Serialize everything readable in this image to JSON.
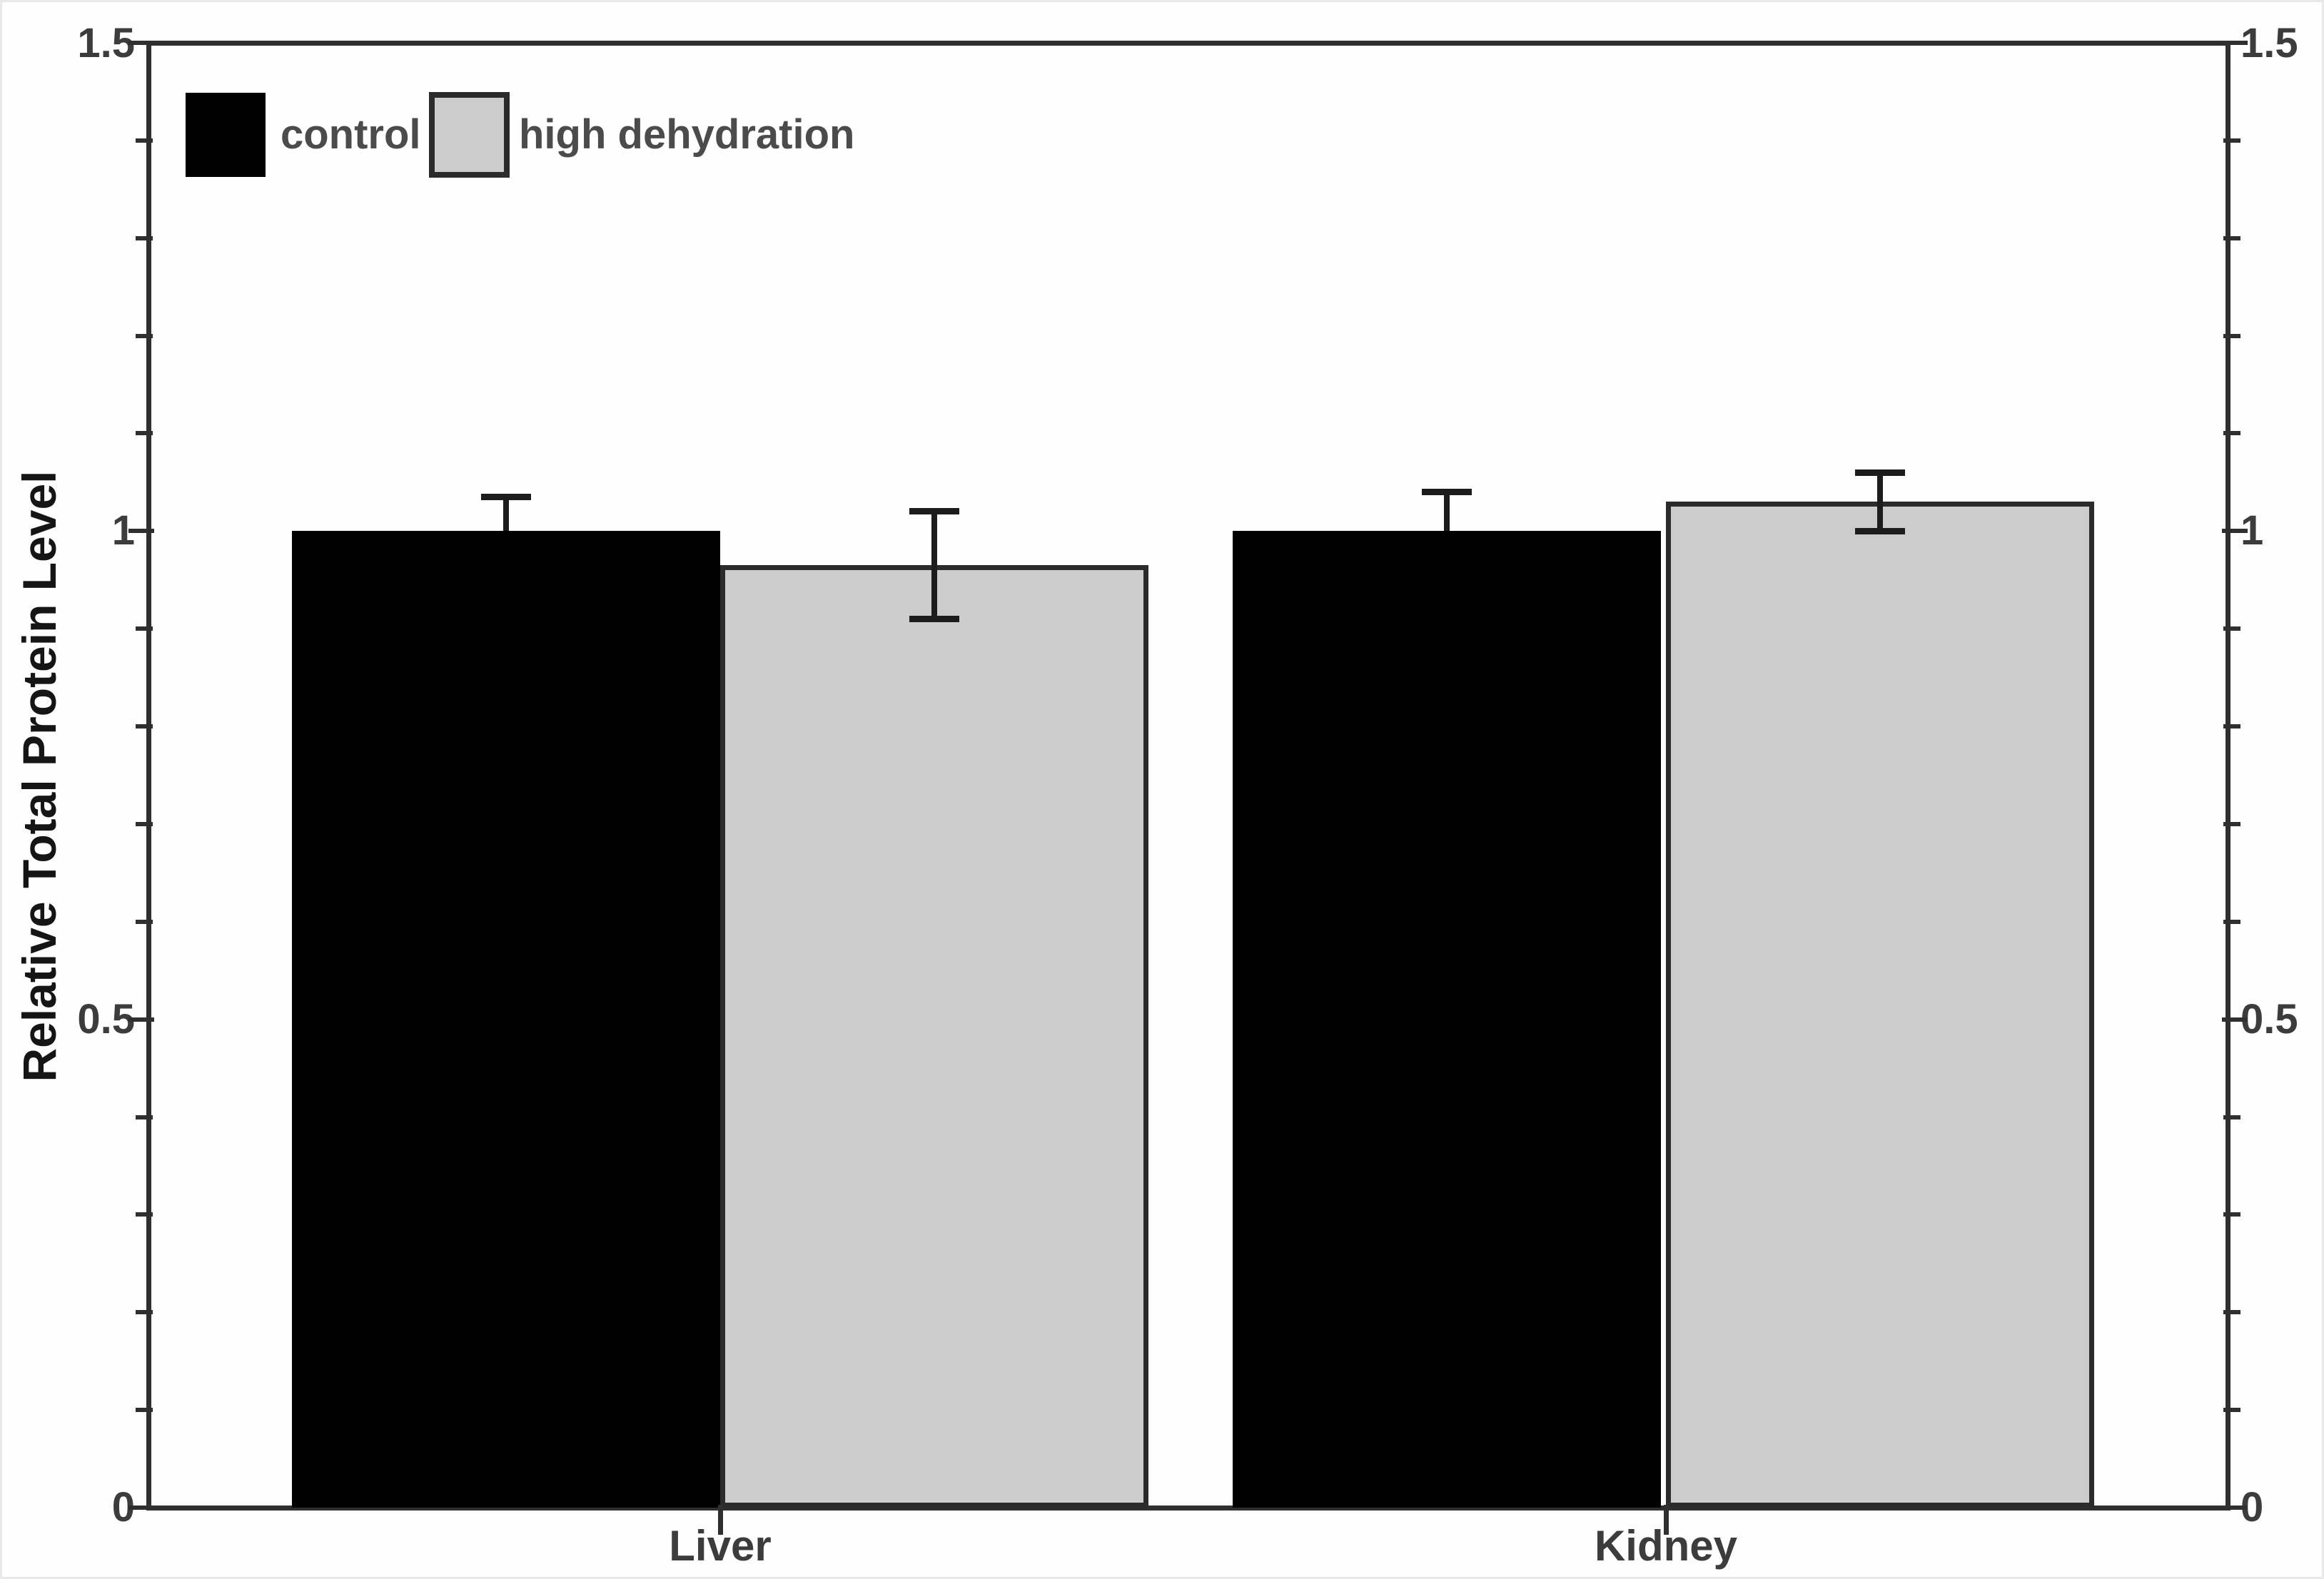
{
  "chart_data": {
    "type": "bar",
    "title": "",
    "categories": [
      "Liver",
      "Kidney"
    ],
    "series": [
      {
        "name": "control",
        "color": "#000000",
        "border_color": "#000000",
        "values": [
          1.0,
          1.0
        ],
        "err_up": [
          0.035,
          0.04
        ],
        "err_down": [
          null,
          null
        ]
      },
      {
        "name": "high dehydration",
        "color": "#cccccc",
        "border_color": "#2b2b2b",
        "values": [
          0.965,
          1.03
        ],
        "err_up": [
          0.055,
          0.03
        ],
        "err_down": [
          0.055,
          0.03
        ]
      }
    ],
    "xlabel": "",
    "ylabel": "Relative Total Protein Level",
    "ylim": [
      0,
      1.5
    ],
    "ytick_values": [
      0,
      0.5,
      1,
      1.5
    ],
    "minor_tick_step": 0.1,
    "grid": false,
    "legend_position": "top-left",
    "dual_y_axis": true
  },
  "axes": {
    "y_axis_title": "Relative Total Protein Level",
    "left_tick_labels": [
      "1.5",
      "1",
      "0.5",
      "0"
    ],
    "right_tick_labels": [
      "1.5",
      "1",
      "0.5",
      "0"
    ],
    "x_labels": [
      "Liver",
      "Kidney"
    ]
  },
  "legend": {
    "control_label": "control",
    "high_dehydration_label": "high dehydration"
  },
  "colors": {
    "control_fill": "#000000",
    "high_dehydration_fill": "#cccccc",
    "bar_border": "#2b2b2b",
    "axis_line": "#2f2f2f",
    "error_bar": "#1c1c1c",
    "tick_label_text": "#3c3c3c",
    "legend_text": "#4b4b4b",
    "background": "#fefefe"
  }
}
